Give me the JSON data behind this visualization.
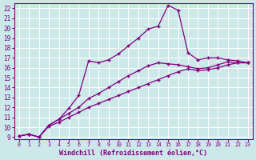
{
  "xlabel": "Windchill (Refroidissement éolien,°C)",
  "bg_color": "#cce8e8",
  "line_color": "#800080",
  "grid_color": "#aacece",
  "xlim": [
    -0.5,
    23.5
  ],
  "ylim": [
    8.8,
    22.5
  ],
  "yticks": [
    9,
    10,
    11,
    12,
    13,
    14,
    15,
    16,
    17,
    18,
    19,
    20,
    21,
    22
  ],
  "xticks": [
    0,
    1,
    2,
    3,
    4,
    5,
    6,
    7,
    8,
    9,
    10,
    11,
    12,
    13,
    14,
    15,
    16,
    17,
    18,
    19,
    20,
    21,
    22,
    23
  ],
  "line1_x": [
    0,
    1,
    2,
    3,
    4,
    5,
    6,
    7,
    8,
    9,
    10,
    11,
    12,
    13,
    14,
    15,
    16,
    17,
    18,
    19,
    20,
    21,
    22,
    23
  ],
  "line1_y": [
    9.1,
    9.3,
    9.0,
    10.2,
    10.8,
    11.9,
    13.2,
    16.7,
    16.5,
    16.8,
    17.4,
    18.2,
    19.0,
    19.9,
    20.2,
    22.3,
    21.8,
    17.5,
    16.8,
    17.0,
    17.0,
    16.8,
    16.7,
    16.5
  ],
  "line2_x": [
    0,
    1,
    2,
    3,
    4,
    5,
    6,
    7,
    8,
    9,
    10,
    11,
    12,
    13,
    14,
    15,
    16,
    17,
    18,
    19,
    20,
    21,
    22,
    23
  ],
  "line2_y": [
    9.1,
    9.3,
    9.0,
    10.2,
    10.8,
    11.4,
    12.0,
    12.9,
    13.4,
    14.0,
    14.6,
    15.2,
    15.7,
    16.2,
    16.5,
    16.4,
    16.3,
    16.1,
    15.9,
    16.0,
    16.3,
    16.6,
    16.5,
    16.5
  ],
  "line3_x": [
    0,
    1,
    2,
    3,
    4,
    5,
    6,
    7,
    8,
    9,
    10,
    11,
    12,
    13,
    14,
    15,
    16,
    17,
    18,
    19,
    20,
    21,
    22,
    23
  ],
  "line3_y": [
    9.1,
    9.3,
    9.0,
    10.1,
    10.5,
    11.0,
    11.5,
    12.0,
    12.4,
    12.8,
    13.2,
    13.6,
    14.0,
    14.4,
    14.8,
    15.2,
    15.6,
    15.9,
    15.7,
    15.8,
    16.0,
    16.3,
    16.5,
    16.5
  ],
  "marker": "+"
}
